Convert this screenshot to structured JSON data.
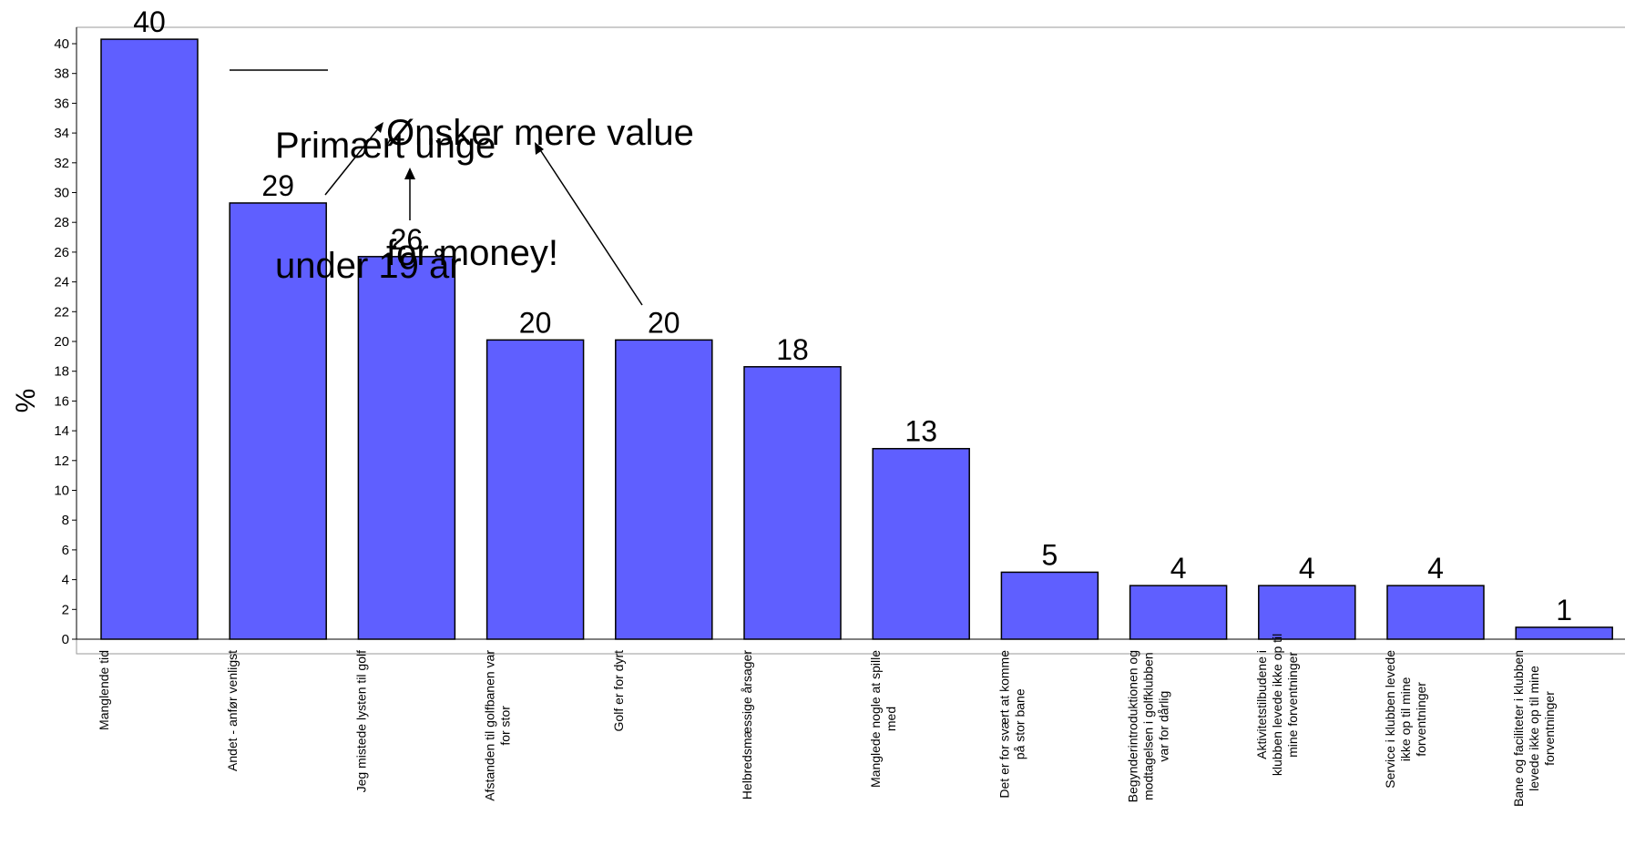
{
  "chart_data": {
    "type": "bar",
    "ylabel": "%",
    "ylim": [
      0,
      41
    ],
    "yticks": [
      0,
      2,
      4,
      6,
      8,
      10,
      12,
      14,
      16,
      18,
      20,
      22,
      24,
      26,
      28,
      30,
      32,
      34,
      36,
      38,
      40
    ],
    "categories": [
      [
        "Manglende tid"
      ],
      [
        "Andet - anfør venligst"
      ],
      [
        "Jeg mistede lysten til golf"
      ],
      [
        "Afstanden til golfbanen var",
        "for stor"
      ],
      [
        "Golf er for dyrt"
      ],
      [
        "Helbredsmæssige årsager"
      ],
      [
        "Manglede nogle at spille",
        "med"
      ],
      [
        "Det er for svært at komme",
        "på stor bane"
      ],
      [
        "Begynderintroduktionen og",
        "modtagelsen i golfklubben",
        "var for dårlig"
      ],
      [
        "Aktivitetstilbudene i",
        "klubben levede ikke op til",
        "mine forventninger"
      ],
      [
        "Service i klubben levede",
        "ikke op til mine",
        "forventninger"
      ],
      [
        "Bane og faciliteter i klubben",
        "levede ikke op til mine",
        "forventninger"
      ]
    ],
    "values": [
      40.3,
      29.3,
      25.7,
      20.1,
      20.1,
      18.3,
      12.8,
      4.5,
      3.6,
      3.6,
      3.6,
      0.8
    ],
    "data_labels": [
      "40",
      "29",
      "26",
      "20",
      "20",
      "18",
      "13",
      "5",
      "4",
      "4",
      "4",
      "1"
    ],
    "bar_color": "#5f5fff",
    "bar_edge_color": "#000000",
    "grid": false,
    "legend": "none"
  },
  "annotations": {
    "young": [
      "Primært unge",
      "under 19 år"
    ],
    "value": [
      "Ønsker mere value",
      "for money!"
    ]
  }
}
